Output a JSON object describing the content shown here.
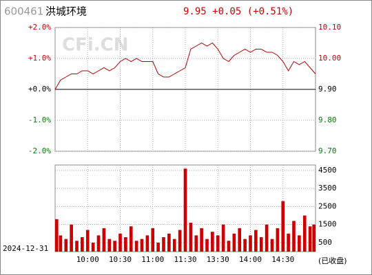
{
  "header": {
    "code": "600461",
    "name": "洪城环境",
    "quote": "9.95 +0.05 (+0.51%)",
    "watermark": "CFi.CN",
    "date": "2024-12-31",
    "status": "(已收盘)"
  },
  "chart_data": [
    {
      "type": "line",
      "x": [
        0,
        5,
        10,
        15,
        20,
        25,
        30,
        35,
        40,
        45,
        50,
        55,
        60,
        65,
        70,
        75,
        80,
        85,
        90,
        95,
        100,
        105,
        110,
        115,
        120,
        125,
        130,
        135,
        140,
        145,
        150,
        155,
        160,
        165,
        170,
        175,
        180,
        185,
        190,
        195,
        200,
        205,
        210,
        215,
        220,
        225,
        230,
        235,
        240
      ],
      "xlim": [
        0,
        240
      ],
      "series": [
        {
          "color": "#b00000",
          "values": [
            9.9,
            9.93,
            9.94,
            9.95,
            9.95,
            9.96,
            9.96,
            9.95,
            9.96,
            9.97,
            9.96,
            9.97,
            9.99,
            10.0,
            9.99,
            10.0,
            9.99,
            9.99,
            9.99,
            9.95,
            9.94,
            9.94,
            9.95,
            9.96,
            9.97,
            10.03,
            10.04,
            10.05,
            10.04,
            10.05,
            10.03,
            10.0,
            9.99,
            10.01,
            10.02,
            10.03,
            10.02,
            10.03,
            10.03,
            10.02,
            10.02,
            10.01,
            9.99,
            9.96,
            9.99,
            9.98,
            9.99,
            9.97,
            9.95
          ]
        }
      ],
      "ylim": [
        9.7,
        10.1
      ],
      "yticks": [
        {
          "value": 10.1,
          "label": "10.10"
        },
        {
          "value": 10.0,
          "label": "10.00"
        },
        {
          "value": 9.9,
          "label": "9.90"
        },
        {
          "value": 9.8,
          "label": "9.80"
        },
        {
          "value": 9.7,
          "label": "9.70"
        }
      ],
      "y2lim": [
        -2.0,
        2.0
      ],
      "y2ticks": [
        {
          "value": 2.0,
          "label": "+2.0%"
        },
        {
          "value": 1.0,
          "label": "+1.0%"
        },
        {
          "value": 0,
          "label": "+0.0%"
        },
        {
          "value": -1.0,
          "label": "-1.0%"
        },
        {
          "value": -2.0,
          "label": "-2.0%"
        }
      ],
      "grid": true
    },
    {
      "type": "bar",
      "x": [
        0,
        5,
        10,
        15,
        20,
        25,
        30,
        35,
        40,
        45,
        50,
        55,
        60,
        65,
        70,
        75,
        80,
        85,
        90,
        95,
        100,
        105,
        110,
        115,
        120,
        125,
        130,
        135,
        140,
        145,
        150,
        155,
        160,
        165,
        170,
        175,
        180,
        185,
        190,
        195,
        200,
        205,
        210,
        215,
        220,
        225,
        230,
        235,
        240
      ],
      "xlim": [
        0,
        240
      ],
      "xticks": [
        {
          "value": 30,
          "label": "10:00"
        },
        {
          "value": 60,
          "label": "10:30"
        },
        {
          "value": 90,
          "label": "11:00"
        },
        {
          "value": 120,
          "label": "11:30"
        },
        {
          "value": 150,
          "label": "13:30"
        },
        {
          "value": 180,
          "label": "14:00"
        },
        {
          "value": 210,
          "label": "14:30"
        }
      ],
      "color": "#cc0000",
      "values": [
        1800,
        900,
        700,
        1500,
        600,
        800,
        1200,
        500,
        900,
        1300,
        700,
        600,
        1000,
        800,
        1400,
        600,
        700,
        900,
        1300,
        500,
        800,
        1000,
        700,
        1200,
        4600,
        1600,
        900,
        1300,
        700,
        1100,
        900,
        1500,
        600,
        1000,
        1300,
        700,
        900,
        1200,
        800,
        1500,
        700,
        1300,
        2800,
        1000,
        1700,
        900,
        2000,
        1400,
        1500
      ],
      "ylim": [
        0,
        4800
      ],
      "yticks": [
        4500,
        3500,
        2500,
        1500,
        500
      ],
      "grid": true
    }
  ]
}
